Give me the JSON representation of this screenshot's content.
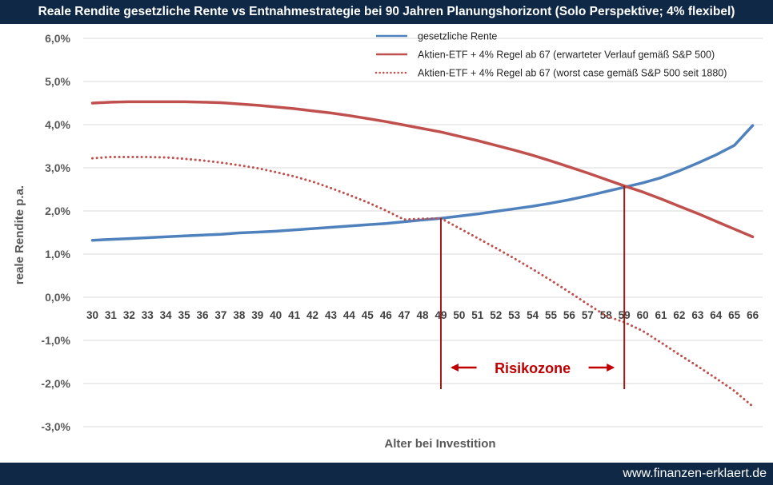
{
  "title": "Reale Rendite gesetzliche Rente vs Entnahmestrategie bei 90 Jahren Planungshorizont (Solo Perspektive; 4% flexibel)",
  "footer": {
    "url": "www.finanzen-erklaert.de"
  },
  "colors": {
    "header": "#0f2846",
    "blue": "#4f81bd",
    "red": "#c0504d",
    "marker": "#9b1b1b",
    "annotation": "#c00000"
  },
  "chart_data": {
    "type": "line",
    "xlabel": "Alter bei Investition",
    "ylabel": "reale Rendite p.a.",
    "x": [
      30,
      31,
      32,
      33,
      34,
      35,
      36,
      37,
      38,
      39,
      40,
      41,
      42,
      43,
      44,
      45,
      46,
      47,
      48,
      49,
      50,
      51,
      52,
      53,
      54,
      55,
      56,
      57,
      58,
      59,
      60,
      61,
      62,
      63,
      64,
      65,
      66
    ],
    "ylim": [
      -0.03,
      0.06
    ],
    "yticks": [
      0.06,
      0.05,
      0.04,
      0.03,
      0.02,
      0.01,
      0.0,
      -0.01,
      -0.02,
      -0.03
    ],
    "ytick_labels": [
      "6,0%",
      "5,0%",
      "4,0%",
      "3,0%",
      "2,0%",
      "1,0%",
      "0,0%",
      "-1,0%",
      "-2,0%",
      "-3,0%"
    ],
    "grid": true,
    "legend": "top-right",
    "series": [
      {
        "name": "gesetzliche Rente",
        "style": "solid",
        "color": "#4f81bd",
        "values": [
          0.0132,
          0.0134,
          0.0136,
          0.0138,
          0.014,
          0.0142,
          0.0144,
          0.0146,
          0.0149,
          0.0151,
          0.0153,
          0.0156,
          0.0159,
          0.0162,
          0.0165,
          0.0168,
          0.0171,
          0.0175,
          0.0179,
          0.0183,
          0.0188,
          0.0193,
          0.0199,
          0.0205,
          0.0211,
          0.0218,
          0.0226,
          0.0235,
          0.0245,
          0.0255,
          0.0265,
          0.0277,
          0.0293,
          0.0311,
          0.033,
          0.0352,
          0.0398
        ]
      },
      {
        "name": "Aktien-ETF + 4% Regel ab 67 (erwarteter Verlauf gemäß S&P 500)",
        "style": "solid",
        "color": "#c0504d",
        "values": [
          0.045,
          0.0452,
          0.0453,
          0.0453,
          0.0453,
          0.0453,
          0.0452,
          0.0451,
          0.0448,
          0.0445,
          0.0441,
          0.0437,
          0.0432,
          0.0427,
          0.0421,
          0.0414,
          0.0407,
          0.0399,
          0.0391,
          0.0383,
          0.0373,
          0.0363,
          0.0352,
          0.0341,
          0.0329,
          0.0316,
          0.0302,
          0.0288,
          0.0273,
          0.0258,
          0.0244,
          0.0228,
          0.0211,
          0.0194,
          0.0176,
          0.0158,
          0.014
        ]
      },
      {
        "name": "Aktien-ETF + 4% Regel ab 67 (worst case gemäß S&P 500 seit 1880)",
        "style": "dotted",
        "color": "#c0504d",
        "values": [
          0.0322,
          0.0325,
          0.0325,
          0.0325,
          0.0324,
          0.0321,
          0.0317,
          0.0312,
          0.0306,
          0.0299,
          0.029,
          0.028,
          0.0268,
          0.0253,
          0.0237,
          0.022,
          0.0201,
          0.018,
          0.0182,
          0.0183,
          0.016,
          0.0137,
          0.0114,
          0.009,
          0.0065,
          0.0039,
          0.0012,
          -0.0016,
          -0.0043,
          -0.0058,
          -0.0078,
          -0.0105,
          -0.0133,
          -0.016,
          -0.0188,
          -0.0217,
          -0.0253
        ]
      }
    ],
    "markers": [
      {
        "x": 49,
        "y_top": 0.0183,
        "y_bottom": -0.0213
      },
      {
        "x": 59,
        "y_top": 0.0258,
        "y_bottom": -0.0213
      }
    ],
    "annotation": {
      "text": "Risikozone",
      "x_from": 49,
      "x_to": 59,
      "y": -0.0163
    }
  }
}
